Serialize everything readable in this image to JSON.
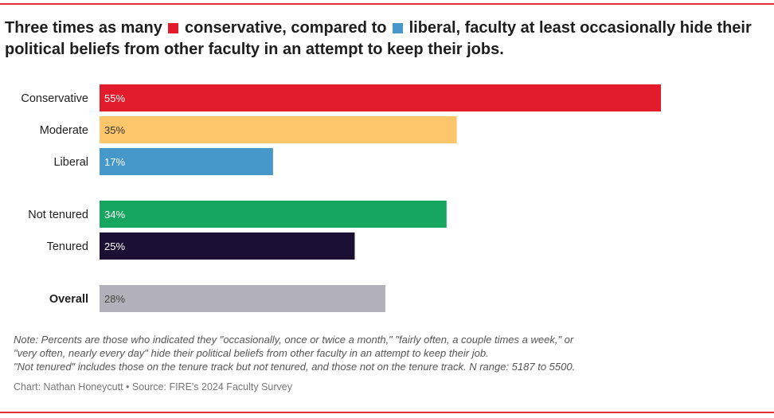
{
  "chart_data": {
    "type": "bar",
    "orientation": "horizontal",
    "title": {
      "part1": "Three times as many",
      "legend_conservative": "conservative,",
      "part2": "compared to",
      "legend_liberal": "liberal,",
      "part3": "faculty at least occasionally hide their political beliefs from other faculty in an attempt to keep their jobs."
    },
    "categories": [
      "Conservative",
      "Moderate",
      "Liberal",
      "Not tenured",
      "Tenured",
      "Overall"
    ],
    "values": [
      55,
      35,
      17,
      34,
      25,
      28
    ],
    "value_labels": [
      "55%",
      "35%",
      "17%",
      "34%",
      "25%",
      "28%"
    ],
    "colors": [
      "#e31c2c",
      "#fec66b",
      "#4698cb",
      "#16a660",
      "#1b1033",
      "#b2b1b9"
    ],
    "label_colors": [
      "#ffffff",
      "#333333",
      "#ffffff",
      "#ffffff",
      "#ffffff",
      "#444444"
    ],
    "bold_categories": [
      "Overall"
    ],
    "groups": [
      [
        0,
        1,
        2
      ],
      [
        3,
        4
      ],
      [
        5
      ]
    ],
    "xlim": [
      0,
      55
    ],
    "xlabel": "",
    "ylabel": "",
    "grid": false
  },
  "note": {
    "line1": "Note: Percents are those who indicated they \"occasionally, once or twice a month,\" \"fairly often, a couple times a week,\" or",
    "line2": "\"very often, nearly every day\" hide their political beliefs from other faculty in an attempt to keep their job.",
    "line3": "\"Not tenured\" includes those on the tenure track but not tenured, and those not on the tenure track. N range: 5187 to 5500."
  },
  "credit": "Chart: Nathan Honeycutt • Source: FIRE's 2024 Faculty Survey"
}
